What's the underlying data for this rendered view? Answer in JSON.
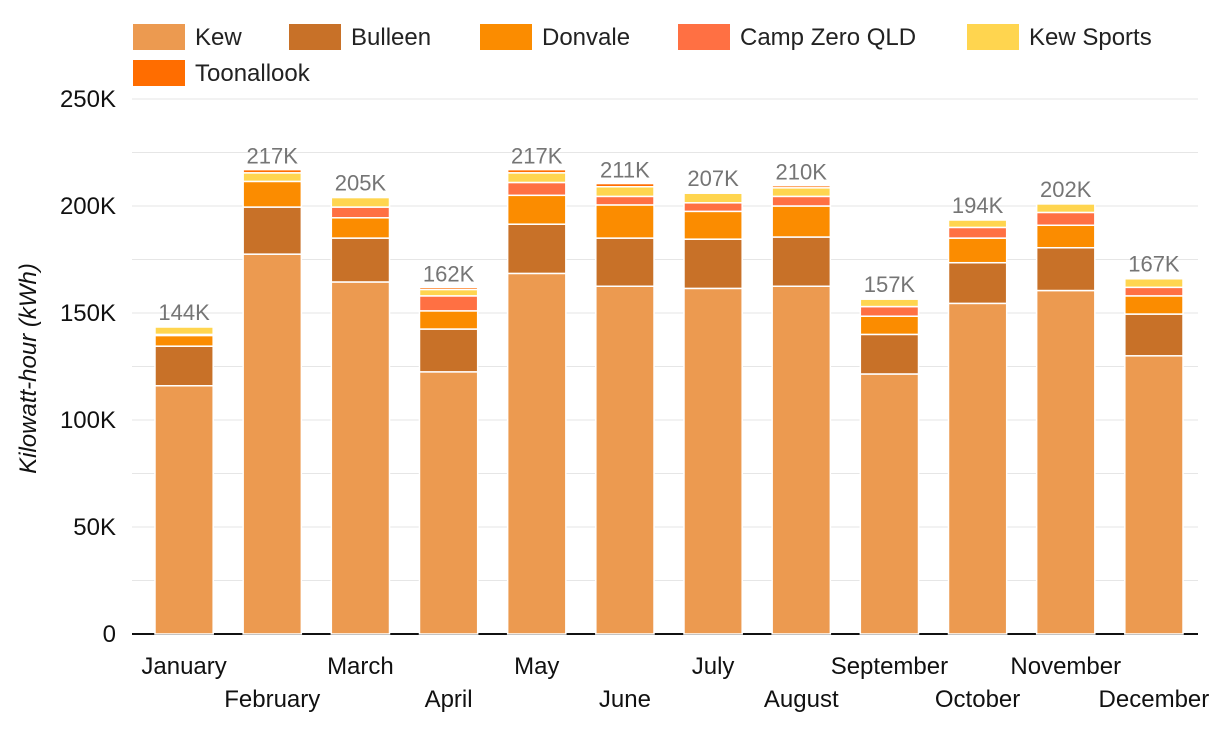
{
  "chart_data": {
    "type": "bar",
    "stacked": true,
    "title": "",
    "xlabel": "",
    "ylabel": "Kilowatt-hour (kWh)",
    "ylim": [
      0,
      250000
    ],
    "yticks": [
      0,
      50000,
      100000,
      150000,
      200000,
      250000
    ],
    "ytick_labels": [
      "0",
      "50K",
      "100K",
      "150K",
      "200K",
      "250K"
    ],
    "grid": true,
    "legend_position": "top-left",
    "categories": [
      "January",
      "February",
      "March",
      "April",
      "May",
      "June",
      "July",
      "August",
      "September",
      "October",
      "November",
      "December"
    ],
    "total_labels": [
      "144K",
      "217K",
      "205K",
      "162K",
      "217K",
      "211K",
      "207K",
      "210K",
      "157K",
      "194K",
      "202K",
      "167K"
    ],
    "series": [
      {
        "name": "Kew",
        "color": "#EC9A50",
        "values": [
          116000,
          177500,
          164500,
          122500,
          168500,
          162500,
          161500,
          162500,
          121500,
          154500,
          160500,
          130000
        ]
      },
      {
        "name": "Bulleen",
        "color": "#C87128",
        "values": [
          18500,
          22000,
          20500,
          20000,
          23000,
          22500,
          23000,
          23000,
          18500,
          19000,
          20000,
          19500
        ]
      },
      {
        "name": "Donvale",
        "color": "#FB8C00",
        "values": [
          5000,
          12000,
          9500,
          8500,
          13500,
          15500,
          13000,
          14500,
          8500,
          11500,
          10500,
          8500
        ]
      },
      {
        "name": "Camp Zero QLD",
        "color": "#FF7043",
        "values": [
          500,
          0,
          5000,
          7000,
          6000,
          4000,
          4000,
          4500,
          4500,
          5000,
          6000,
          4000
        ]
      },
      {
        "name": "Kew Sports",
        "color": "#FFD54F",
        "values": [
          3500,
          4000,
          4500,
          3000,
          4500,
          4500,
          4500,
          4000,
          3500,
          3500,
          4000,
          4000
        ]
      },
      {
        "name": "Toonallook",
        "color": "#FF6D00",
        "values": [
          500,
          1500,
          500,
          1000,
          1500,
          1500,
          500,
          1000,
          500,
          500,
          500,
          500
        ]
      }
    ]
  }
}
